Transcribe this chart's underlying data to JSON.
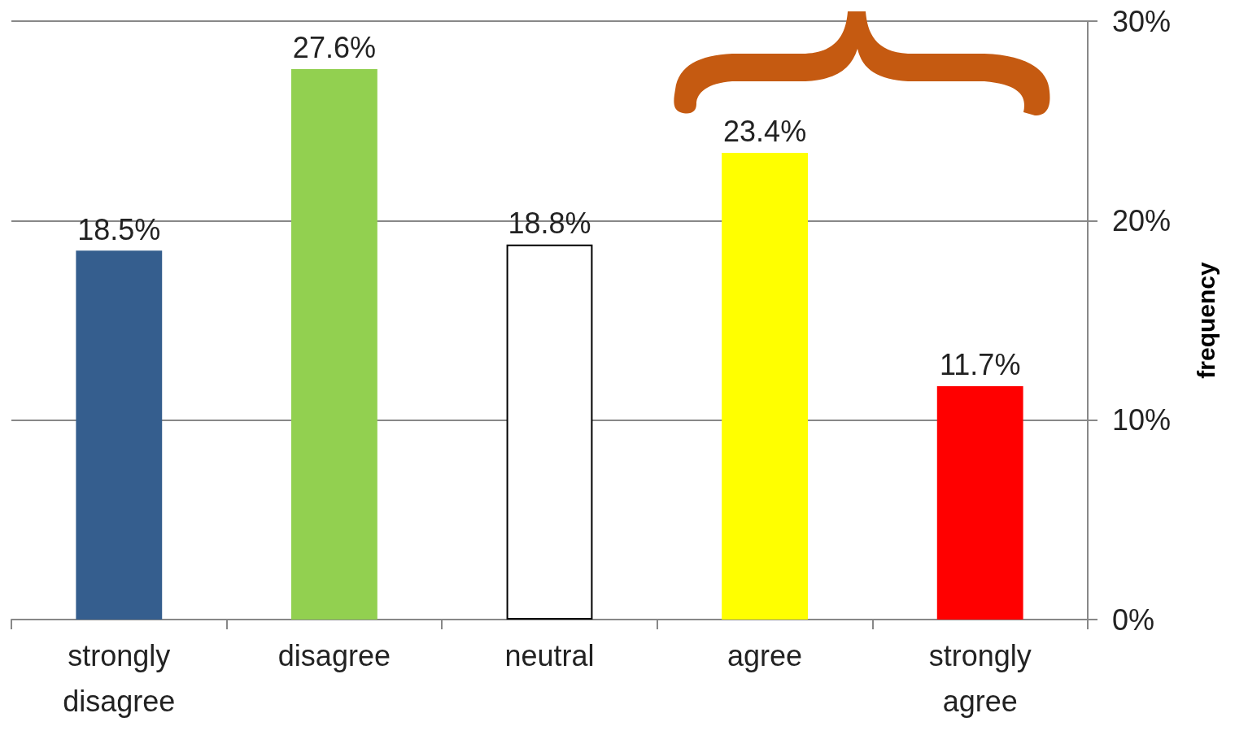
{
  "chart_data": {
    "type": "bar",
    "ylabel": "frequency",
    "categories": [
      "strongly\ndisagree",
      "disagree",
      "neutral",
      "agree",
      "strongly\nagree"
    ],
    "values": [
      18.5,
      27.6,
      18.8,
      23.4,
      11.7
    ],
    "colors": [
      "#355e8e",
      "#92d050",
      "#ffffff",
      "#ffff00",
      "#ff0000"
    ],
    "value_labels": [
      "18.5%",
      "27.6%",
      "18.8%",
      "23.4%",
      "11.7%"
    ],
    "ylim": [
      0,
      30
    ],
    "yticks": [
      {
        "value": 0,
        "label": "0%"
      },
      {
        "value": 10,
        "label": "10%"
      },
      {
        "value": 20,
        "label": "20%"
      },
      {
        "value": 30,
        "label": "30%"
      }
    ],
    "grid": "y"
  }
}
